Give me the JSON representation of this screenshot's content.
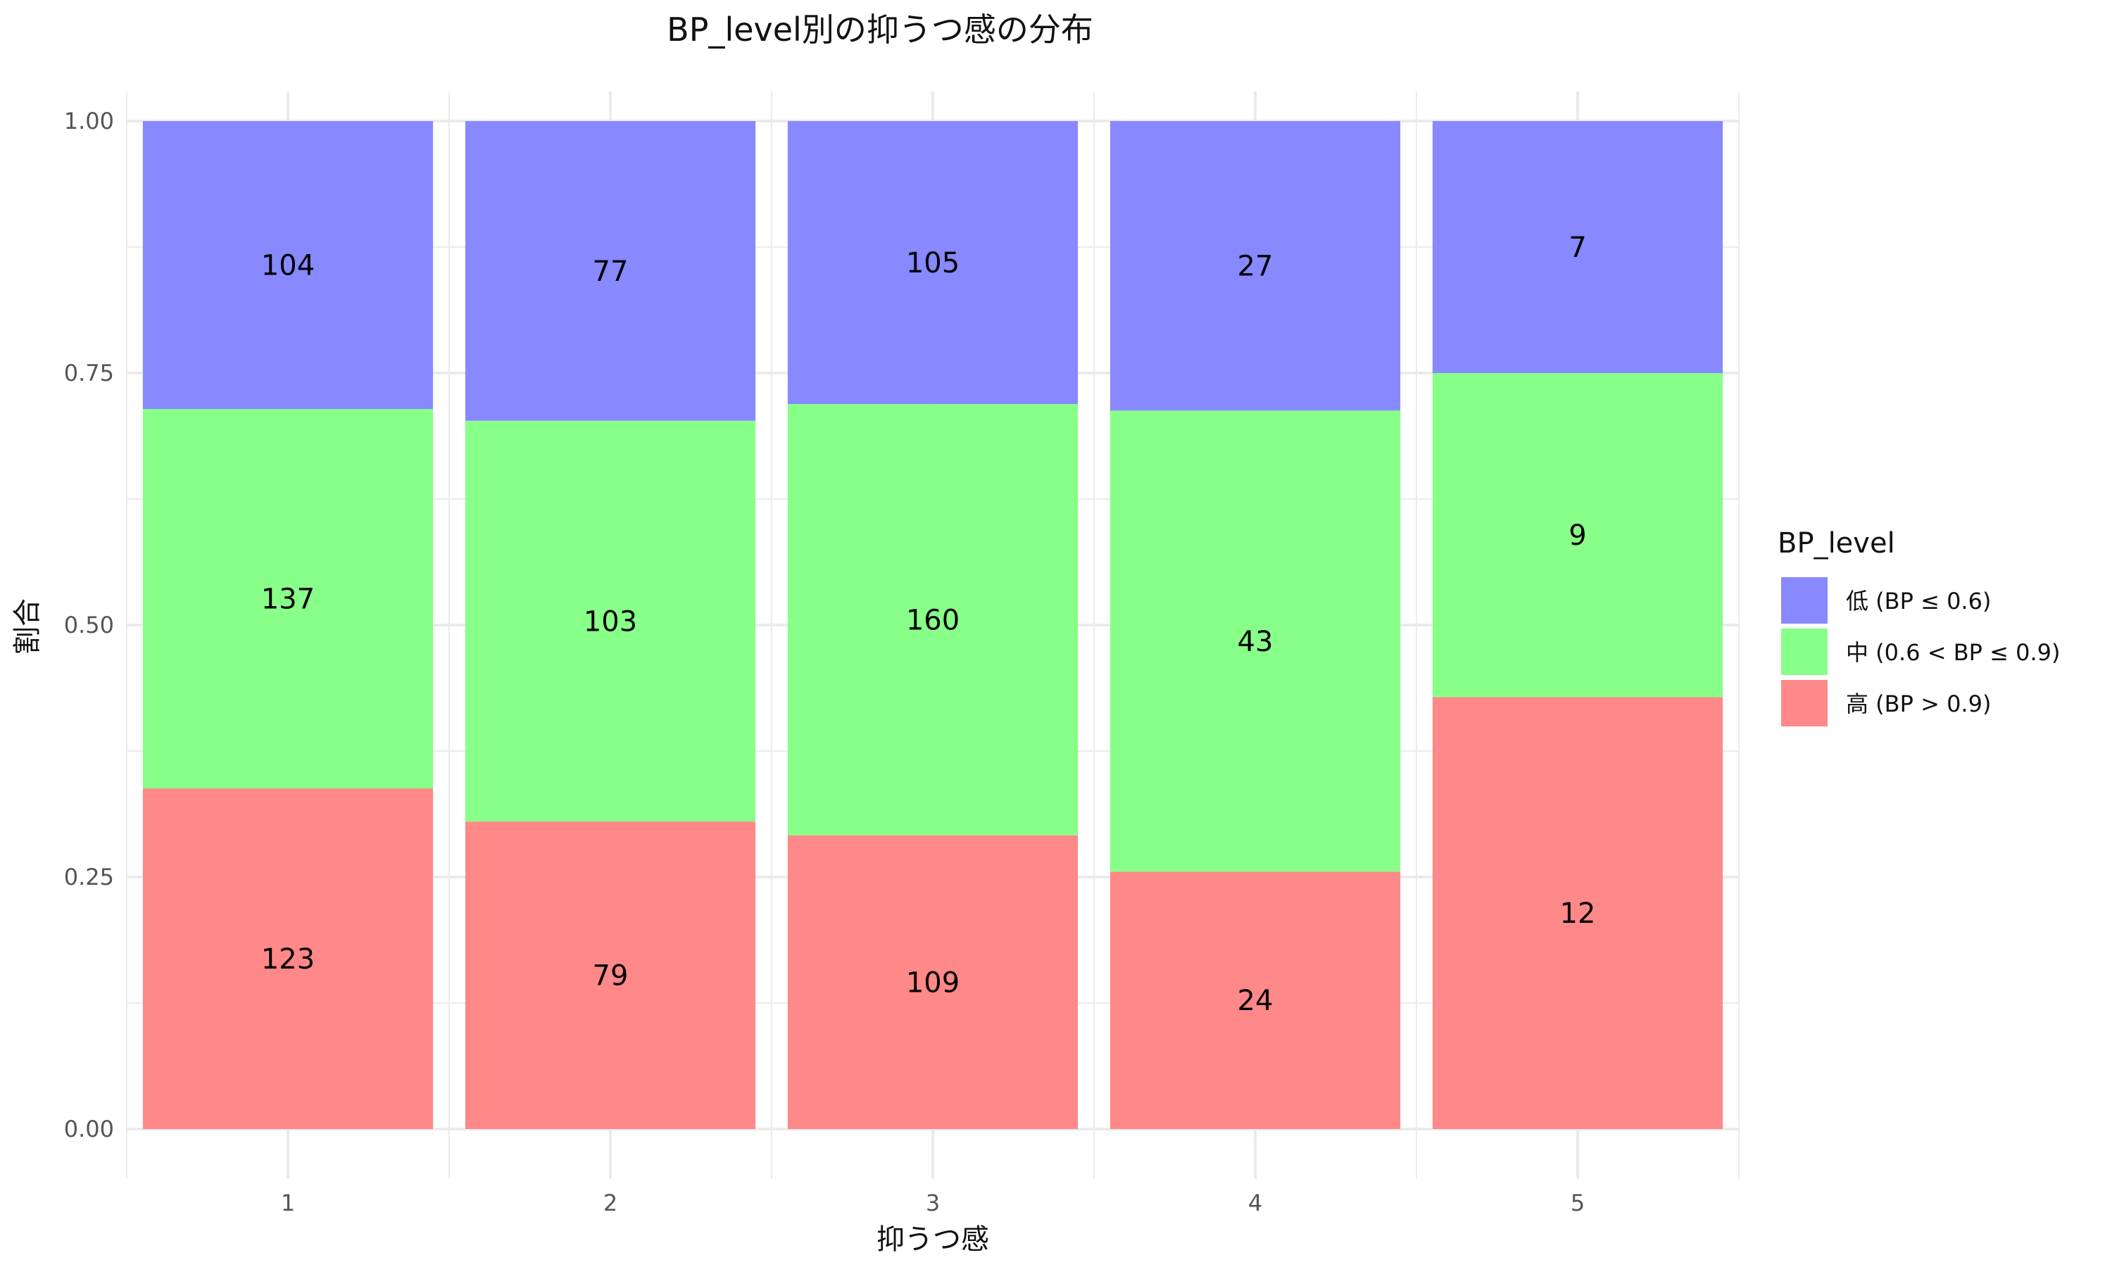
{
  "chart_data": {
    "type": "bar",
    "stacked": "percent",
    "title": "BP_level別の抑うつ感の分布",
    "xlabel": "抑うつ感",
    "ylabel": "割合",
    "categories": [
      "1",
      "2",
      "3",
      "4",
      "5"
    ],
    "ylim": [
      0,
      1
    ],
    "yticks": [
      "0.00",
      "0.25",
      "0.50",
      "0.75",
      "1.00"
    ],
    "grid": true,
    "legend": {
      "title": "BP_level",
      "position": "right",
      "items": [
        {
          "label": "低 (BP ≤ 0.6)",
          "color": "#8888ff"
        },
        {
          "label": "中 (0.6 < BP ≤ 0.9)",
          "color": "#88ff88"
        },
        {
          "label": "高 (BP > 0.9)",
          "color": "#ff8888"
        }
      ]
    },
    "series": [
      {
        "name": "高 (BP > 0.9)",
        "color": "#ff8888",
        "values": [
          123,
          79,
          109,
          24,
          12
        ]
      },
      {
        "name": "中 (0.6 < BP ≤ 0.9)",
        "color": "#88ff88",
        "values": [
          137,
          103,
          160,
          43,
          9
        ]
      },
      {
        "name": "低 (BP ≤ 0.6)",
        "color": "#8888ff",
        "values": [
          104,
          77,
          105,
          27,
          7
        ]
      }
    ]
  }
}
